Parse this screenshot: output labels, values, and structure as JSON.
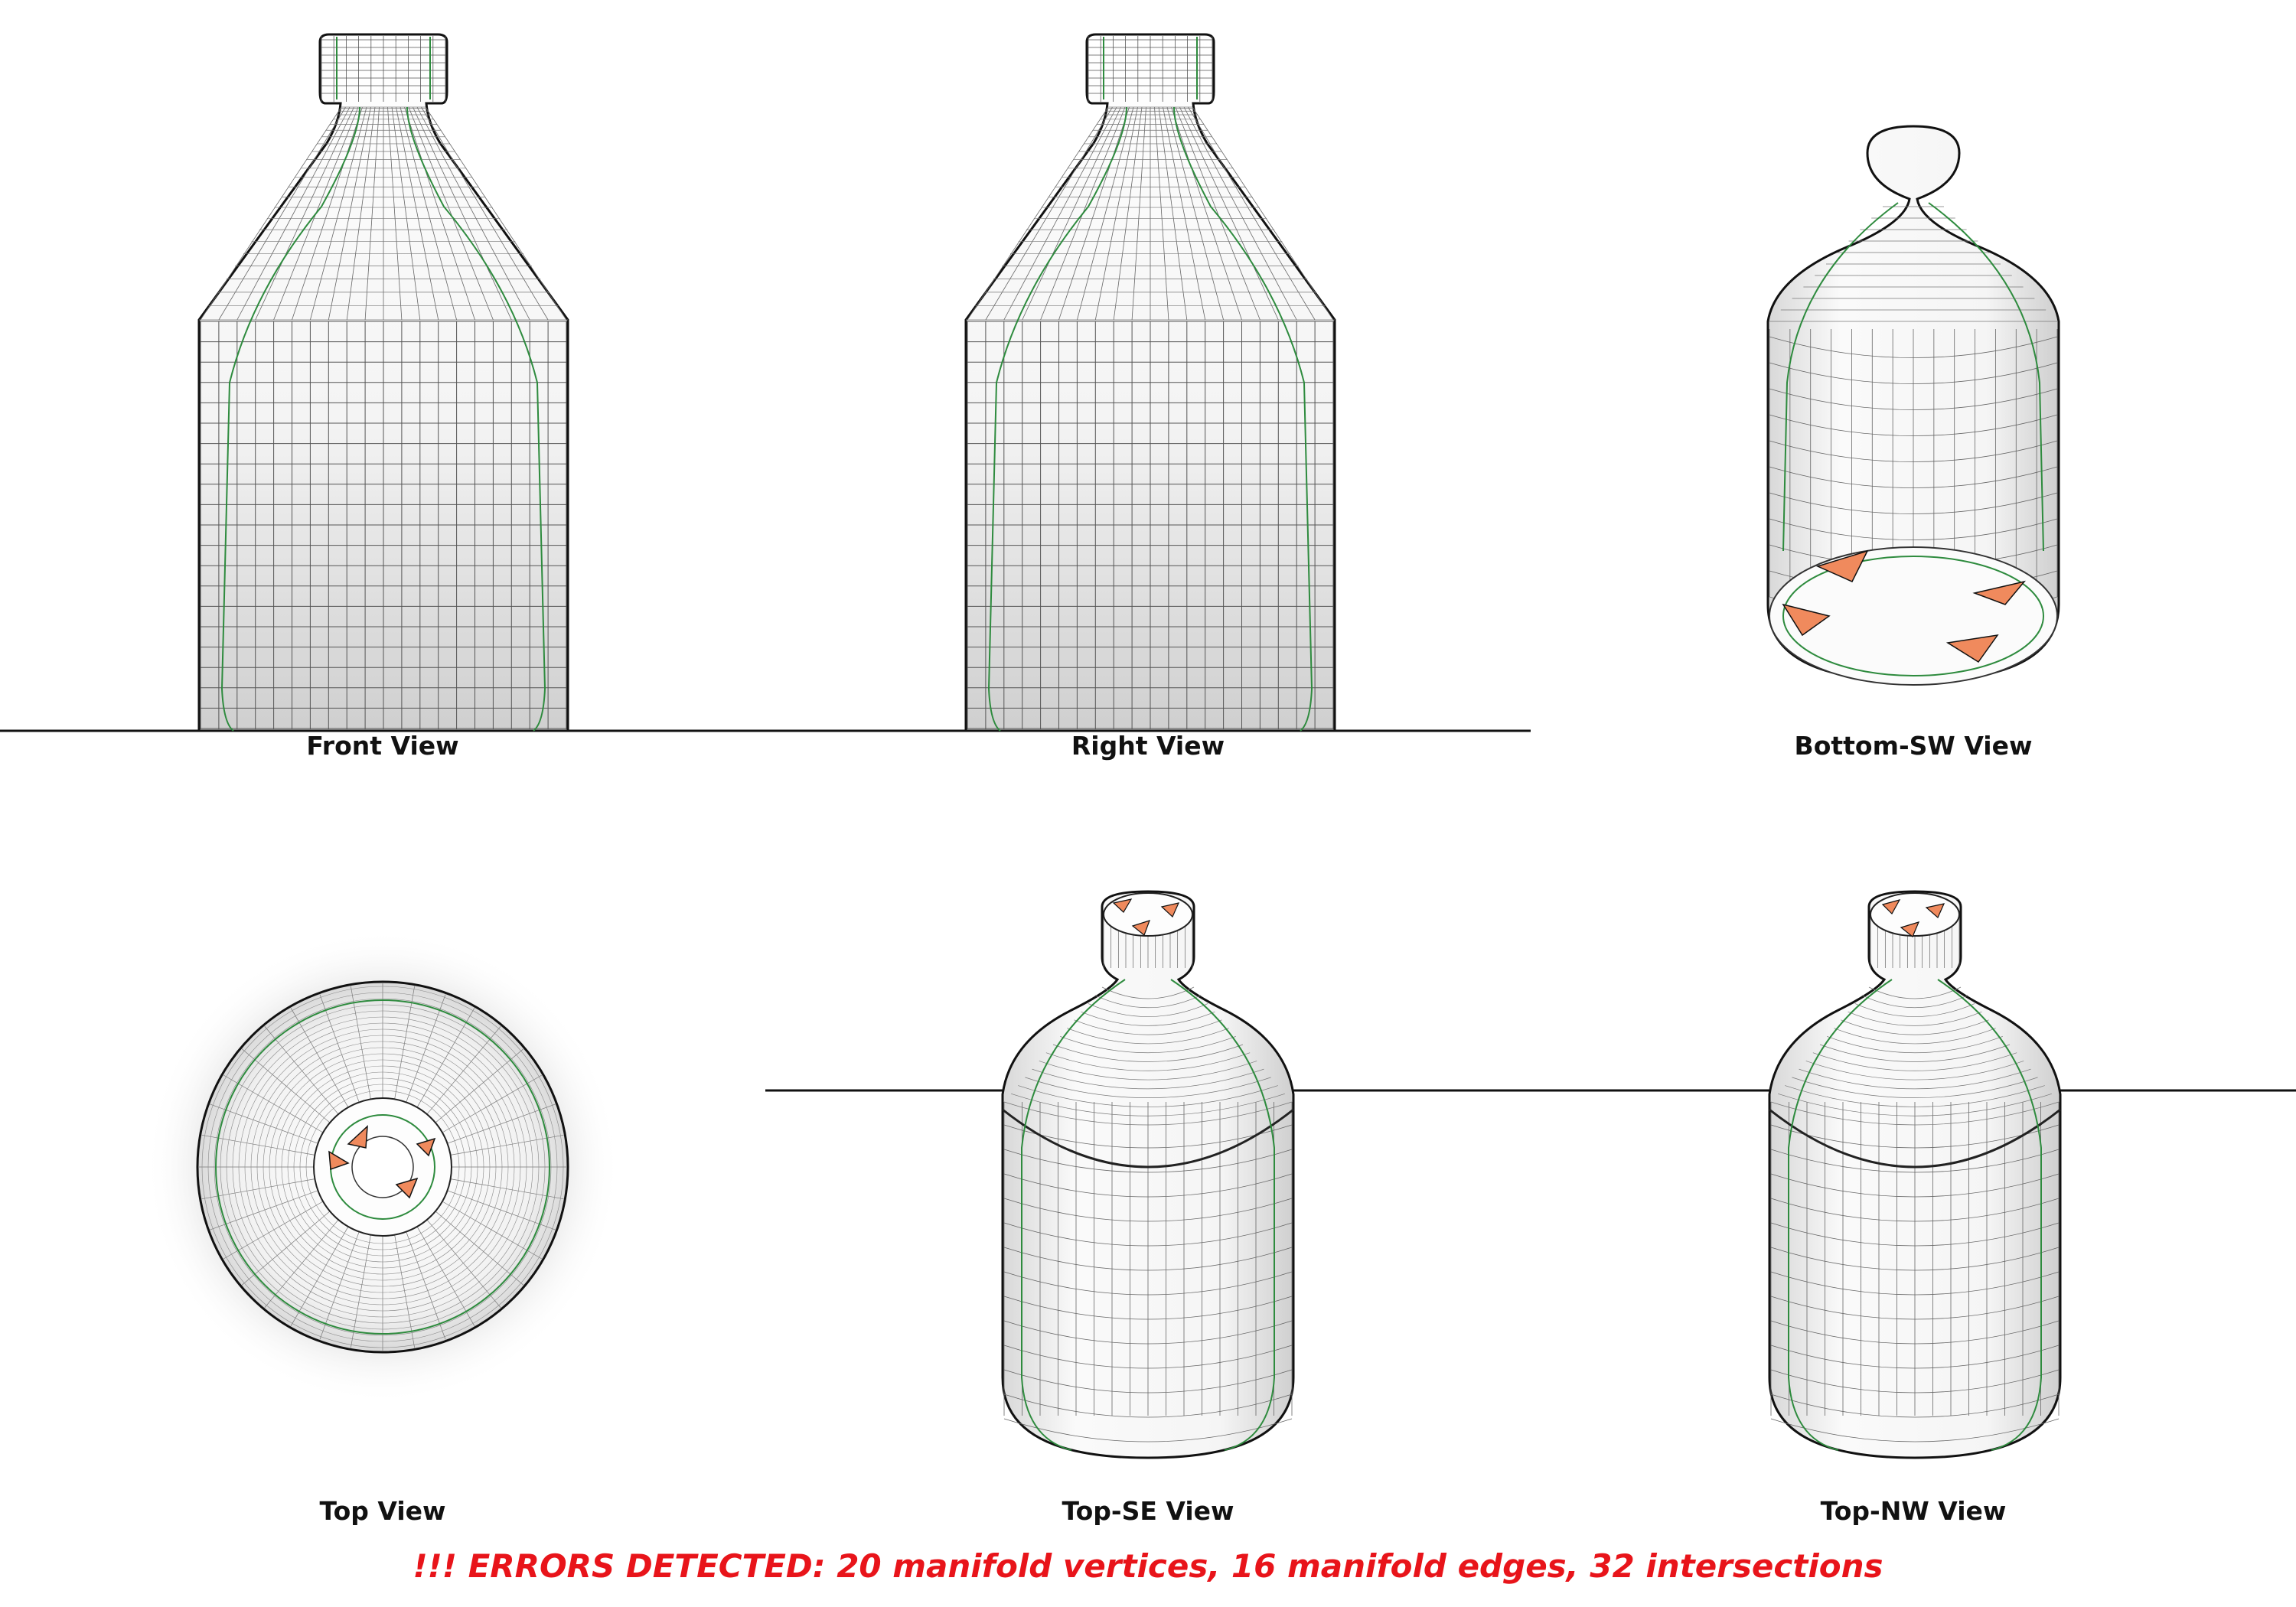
{
  "views": {
    "front": "Front View",
    "right": "Right View",
    "bottom_sw": "Bottom-SW View",
    "top": "Top View",
    "top_se": "Top-SE View",
    "top_nw": "Top-NW View"
  },
  "error_message": "!!! ERRORS DETECTED: 20 manifold vertices, 16 manifold edges, 32 intersections",
  "colors": {
    "error_text": "#e8141a",
    "wire": "#1a1a1a",
    "seam": "#2e8b3e",
    "error_marker": "#f08a5d"
  }
}
